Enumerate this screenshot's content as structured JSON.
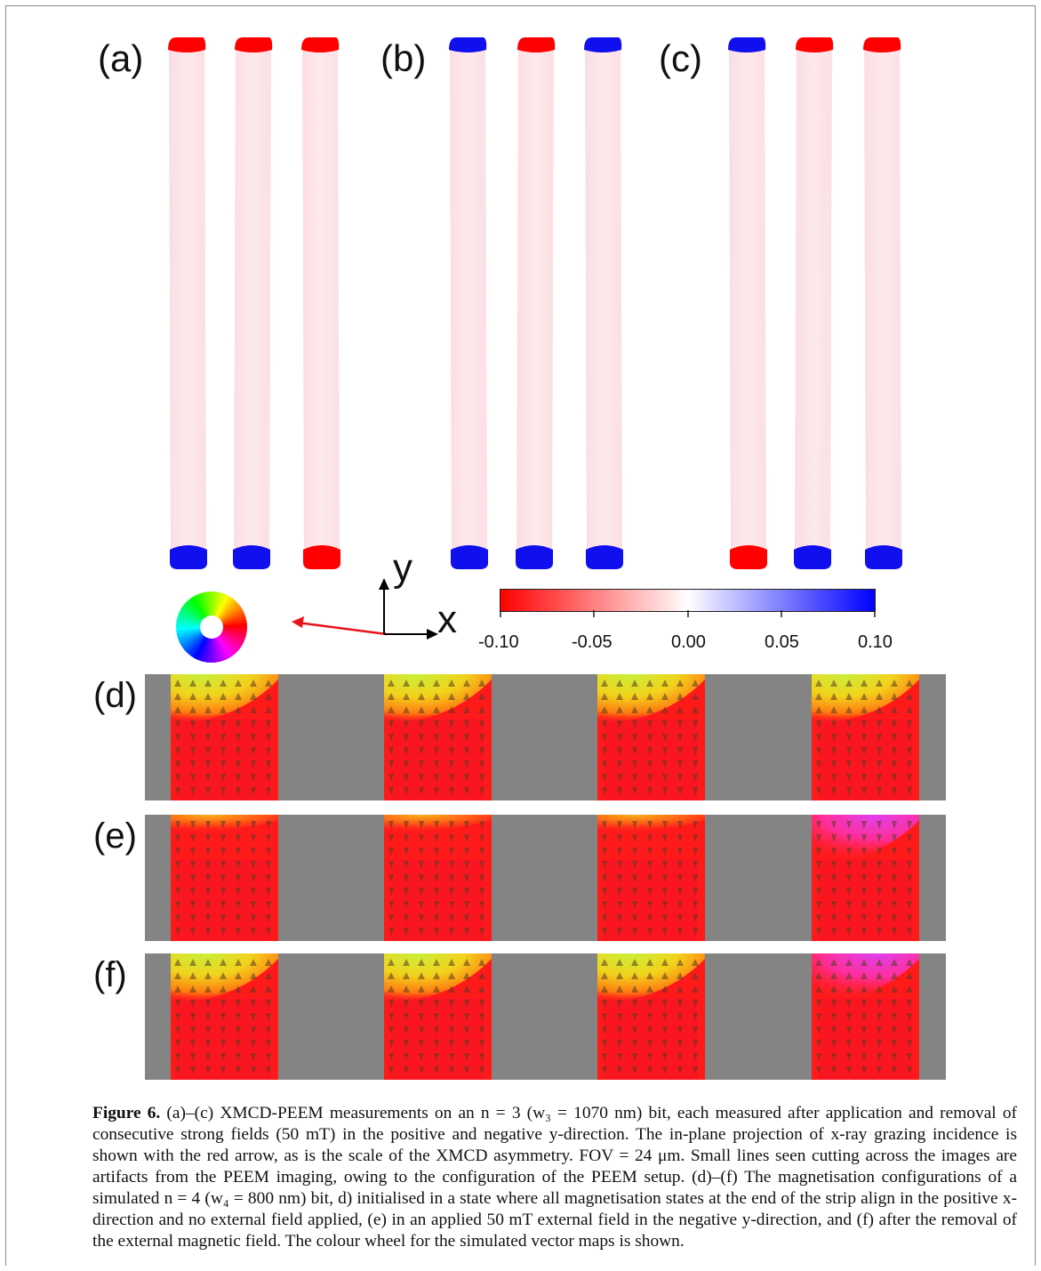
{
  "figure": {
    "panel_labels": [
      "(a)",
      "(b)",
      "(c)"
    ],
    "sim_labels": [
      "(d)",
      "(e)",
      "(f)"
    ],
    "axes": {
      "y": "y",
      "x": "x"
    },
    "colorbar": {
      "ticks": [
        "-0.10",
        "-0.05",
        "0.00",
        "0.05",
        "0.10"
      ],
      "low_color": "#ff0000",
      "mid_color": "#ffffff",
      "high_color": "#0000ff"
    },
    "strips": {
      "a": [
        [
          "red",
          "blue"
        ],
        [
          "red",
          "blue"
        ],
        [
          "red",
          "red"
        ]
      ],
      "b": [
        [
          "blue",
          "blue"
        ],
        [
          "red",
          "blue"
        ],
        [
          "blue",
          "blue"
        ]
      ],
      "c": [
        [
          "blue",
          "red"
        ],
        [
          "red",
          "blue"
        ],
        [
          "red",
          "blue"
        ]
      ]
    },
    "sim_top_regions": {
      "d": [
        "yellow",
        "yellow",
        "yellow",
        "yellow"
      ],
      "e": [
        "orange",
        "orange",
        "orange",
        "magenta"
      ],
      "f": [
        "yellow",
        "yellow",
        "yellow",
        "magenta"
      ]
    },
    "arrow_color": "#e8131b",
    "background_gray": "#848484"
  },
  "caption": {
    "label": "Figure 6.",
    "text": " (a)–(c) XMCD-PEEM measurements on an n = 3 (w₃ = 1070 nm) bit, each measured after application and removal of consecutive strong fields (50 mT) in the positive and negative y-direction. The in-plane projection of x-ray grazing incidence is shown with the red arrow, as is the scale of the XMCD asymmetry. FOV = 24 μm. Small lines seen cutting across the images are artifacts from the PEEM imaging, owing to the configuration of the PEEM setup. (d)–(f) The magnetisation configurations of a simulated n = 4 (w₄ = 800 nm) bit, d) initialised in a state where all magnetisation states at the end of the strip align in the positive x-direction and no external field applied, (e) in an applied 50 mT external field in the negative y-direction, and (f) after the removal of the external magnetic field. The colour wheel for the simulated vector maps is shown."
  }
}
